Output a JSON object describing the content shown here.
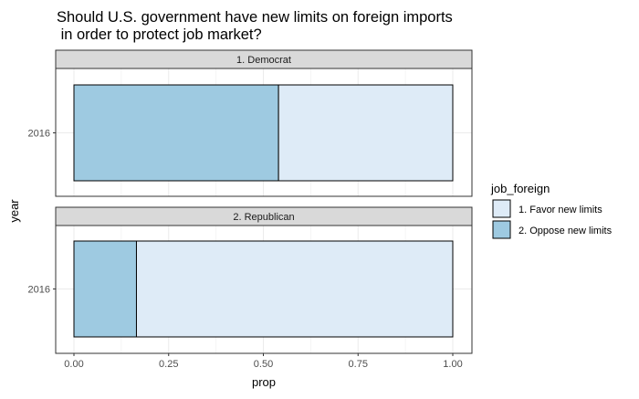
{
  "chart_data": {
    "type": "bar",
    "orientation": "horizontal",
    "stacked": true,
    "title": "Should U.S. government have new limits on foreign imports\n in order to protect job market?",
    "xlabel": "prop",
    "ylabel": "year",
    "xlim": [
      0,
      1
    ],
    "x_ticks": [
      "0.00",
      "0.25",
      "0.50",
      "0.75",
      "1.00"
    ],
    "x_tick_values": [
      0,
      0.25,
      0.5,
      0.75,
      1.0
    ],
    "grid": true,
    "facets": [
      {
        "label": "1. Democrat",
        "category": "2016",
        "stack": [
          {
            "series": "2. Oppose new limits",
            "value": 0.54
          },
          {
            "series": "1. Favor new limits",
            "value": 0.46
          }
        ]
      },
      {
        "label": "2. Republican",
        "category": "2016",
        "stack": [
          {
            "series": "2. Oppose new limits",
            "value": 0.165
          },
          {
            "series": "1. Favor new limits",
            "value": 0.835
          }
        ]
      }
    ],
    "legend": {
      "title": "job_foreign",
      "position": "right",
      "items": [
        {
          "label": "1. Favor new limits",
          "color": "#deebf7"
        },
        {
          "label": "2. Oppose new limits",
          "color": "#9ecae1"
        }
      ]
    },
    "colors": {
      "1. Favor new limits": "#deebf7",
      "2. Oppose new limits": "#9ecae1"
    }
  }
}
